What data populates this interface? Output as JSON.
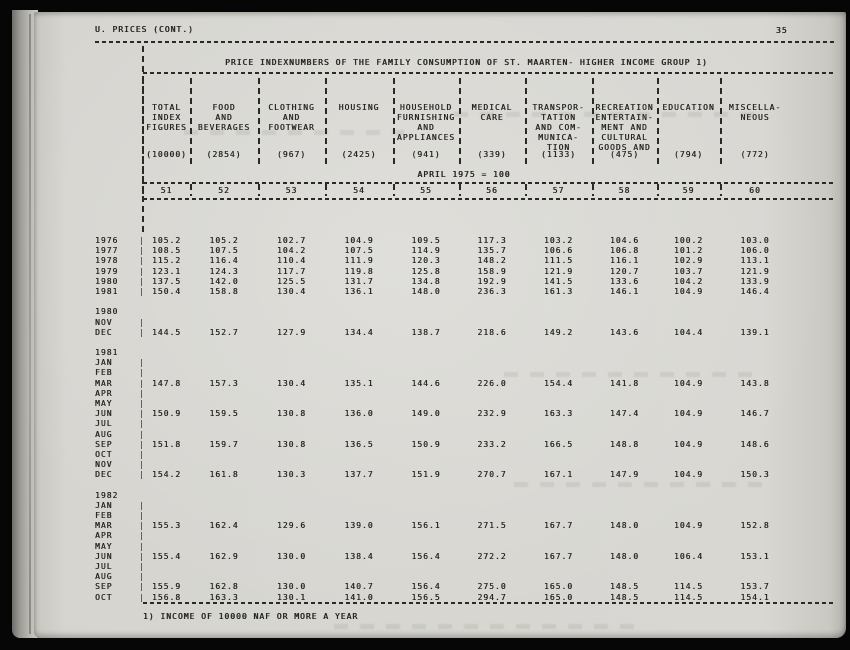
{
  "page": {
    "header_left": "U. PRICES (CONT.)",
    "page_number": "35",
    "title": "PRICE INDEXNUMBERS OF THE FAMILY CONSUMPTION OF ST. MAARTEN- HIGHER INCOME GROUP 1)",
    "base_note": "APRIL 1975 = 100",
    "footnote": "1) INCOME OF 10000 NAF OR MORE A YEAR"
  },
  "table": {
    "pipe_char": "|",
    "columns": [
      {
        "number": "51",
        "name_lines": [
          "TOTAL",
          "INDEX",
          "FIGURES"
        ],
        "weight": "(10000)"
      },
      {
        "number": "52",
        "name_lines": [
          "FOOD",
          "AND",
          "BEVERAGES"
        ],
        "weight": "(2854)"
      },
      {
        "number": "53",
        "name_lines": [
          "CLOTHING",
          "AND",
          "FOOTWEAR"
        ],
        "weight": "(967)"
      },
      {
        "number": "54",
        "name_lines": [
          "HOUSING"
        ],
        "weight": "(2425)"
      },
      {
        "number": "55",
        "name_lines": [
          "HOUSEHOLD",
          "FURNISHING",
          "AND",
          "APPLIANCES"
        ],
        "weight": "(941)"
      },
      {
        "number": "56",
        "name_lines": [
          "MEDICAL",
          "CARE"
        ],
        "weight": "(339)"
      },
      {
        "number": "57",
        "name_lines": [
          "TRANSPOR-",
          "TATION",
          "AND COM-",
          "MUNICA-",
          "TION"
        ],
        "weight": "(1133)"
      },
      {
        "number": "58",
        "name_lines": [
          "RECREATION",
          "ENTERTAIN-",
          "MENT AND",
          "CULTURAL",
          "GOODS AND"
        ],
        "weight": "(475)"
      },
      {
        "number": "59",
        "name_lines": [
          "EDUCATION"
        ],
        "weight": "(794)"
      },
      {
        "number": "60",
        "name_lines": [
          "MISCELLA-",
          "NEOUS"
        ],
        "weight": "(772)"
      }
    ],
    "rows": [
      {
        "label": "1976",
        "pipe": true,
        "values": [
          "105.2",
          "105.2",
          "102.7",
          "104.9",
          "109.5",
          "117.3",
          "103.2",
          "104.6",
          "100.2",
          "103.0"
        ]
      },
      {
        "label": "1977",
        "pipe": true,
        "values": [
          "108.5",
          "107.5",
          "104.2",
          "107.5",
          "114.9",
          "135.7",
          "106.6",
          "106.8",
          "101.2",
          "106.0"
        ]
      },
      {
        "label": "1978",
        "pipe": true,
        "values": [
          "115.2",
          "116.4",
          "110.4",
          "111.9",
          "120.3",
          "148.2",
          "111.5",
          "116.1",
          "102.9",
          "113.1"
        ]
      },
      {
        "label": "1979",
        "pipe": true,
        "values": [
          "123.1",
          "124.3",
          "117.7",
          "119.8",
          "125.8",
          "158.9",
          "121.9",
          "120.7",
          "103.7",
          "121.9"
        ]
      },
      {
        "label": "1980",
        "pipe": true,
        "values": [
          "137.5",
          "142.0",
          "125.5",
          "131.7",
          "134.8",
          "192.9",
          "141.5",
          "133.6",
          "104.2",
          "133.9"
        ]
      },
      {
        "label": "1981",
        "pipe": true,
        "values": [
          "150.4",
          "158.8",
          "130.4",
          "136.1",
          "148.0",
          "236.3",
          "161.3",
          "146.1",
          "104.9",
          "146.4"
        ]
      },
      {
        "label": "",
        "pipe": false,
        "values": []
      },
      {
        "label": "1980",
        "pipe": false,
        "values": []
      },
      {
        "label": "NOV",
        "pipe": true,
        "values": []
      },
      {
        "label": "DEC",
        "pipe": true,
        "values": [
          "144.5",
          "152.7",
          "127.9",
          "134.4",
          "138.7",
          "218.6",
          "149.2",
          "143.6",
          "104.4",
          "139.1"
        ]
      },
      {
        "label": "",
        "pipe": false,
        "values": []
      },
      {
        "label": "1981",
        "pipe": false,
        "values": []
      },
      {
        "label": "JAN",
        "pipe": true,
        "values": []
      },
      {
        "label": "FEB",
        "pipe": true,
        "values": []
      },
      {
        "label": "MAR",
        "pipe": true,
        "values": [
          "147.8",
          "157.3",
          "130.4",
          "135.1",
          "144.6",
          "226.0",
          "154.4",
          "141.8",
          "104.9",
          "143.8"
        ]
      },
      {
        "label": "APR",
        "pipe": true,
        "values": []
      },
      {
        "label": "MAY",
        "pipe": true,
        "values": []
      },
      {
        "label": "JUN",
        "pipe": true,
        "values": [
          "150.9",
          "159.5",
          "130.8",
          "136.0",
          "149.0",
          "232.9",
          "163.3",
          "147.4",
          "104.9",
          "146.7"
        ]
      },
      {
        "label": "JUL",
        "pipe": true,
        "values": []
      },
      {
        "label": "AUG",
        "pipe": true,
        "values": []
      },
      {
        "label": "SEP",
        "pipe": true,
        "values": [
          "151.8",
          "159.7",
          "130.8",
          "136.5",
          "150.9",
          "233.2",
          "166.5",
          "148.8",
          "104.9",
          "148.6"
        ]
      },
      {
        "label": "OCT",
        "pipe": true,
        "values": []
      },
      {
        "label": "NOV",
        "pipe": true,
        "values": []
      },
      {
        "label": "DEC",
        "pipe": true,
        "values": [
          "154.2",
          "161.8",
          "130.3",
          "137.7",
          "151.9",
          "270.7",
          "167.1",
          "147.9",
          "104.9",
          "150.3"
        ]
      },
      {
        "label": "",
        "pipe": false,
        "values": []
      },
      {
        "label": "1982",
        "pipe": false,
        "values": []
      },
      {
        "label": "JAN",
        "pipe": true,
        "values": []
      },
      {
        "label": "FEB",
        "pipe": true,
        "values": []
      },
      {
        "label": "MAR",
        "pipe": true,
        "values": [
          "155.3",
          "162.4",
          "129.6",
          "139.0",
          "156.1",
          "271.5",
          "167.7",
          "148.0",
          "104.9",
          "152.8"
        ]
      },
      {
        "label": "APR",
        "pipe": true,
        "values": []
      },
      {
        "label": "MAY",
        "pipe": true,
        "values": []
      },
      {
        "label": "JUN",
        "pipe": true,
        "values": [
          "155.4",
          "162.9",
          "130.0",
          "138.4",
          "156.4",
          "272.2",
          "167.7",
          "148.0",
          "106.4",
          "153.1"
        ]
      },
      {
        "label": "JUL",
        "pipe": true,
        "values": []
      },
      {
        "label": "AUG",
        "pipe": true,
        "values": []
      },
      {
        "label": "SEP",
        "pipe": true,
        "values": [
          "155.9",
          "162.8",
          "130.0",
          "140.7",
          "156.4",
          "275.0",
          "165.0",
          "148.5",
          "114.5",
          "153.7"
        ]
      },
      {
        "label": "OCT",
        "pipe": true,
        "values": [
          "156.8",
          "163.3",
          "130.1",
          "141.0",
          "156.5",
          "294.7",
          "165.0",
          "148.5",
          "114.5",
          "154.1"
        ]
      }
    ]
  }
}
